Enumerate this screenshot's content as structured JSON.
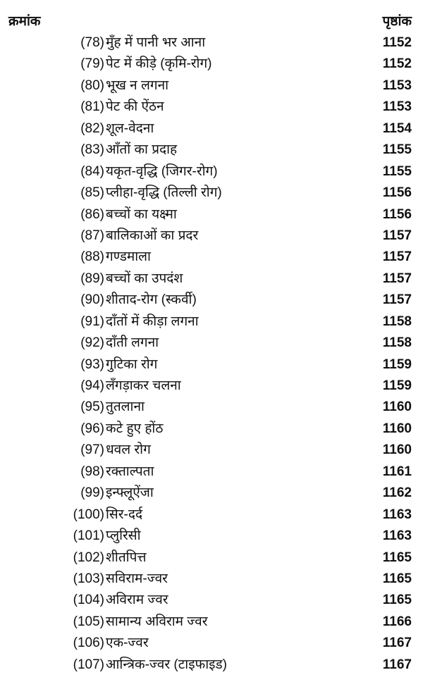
{
  "header": {
    "left": "क्रमांक",
    "right": "पृष्ठांक"
  },
  "entries": [
    {
      "num": "(78)",
      "title": "मुँह में पानी भर आना",
      "page": "1152"
    },
    {
      "num": "(79)",
      "title": "पेट में कीड़े (कृमि-रोग)",
      "page": "1152"
    },
    {
      "num": "(80)",
      "title": "भूख न लगना",
      "page": "1153"
    },
    {
      "num": "(81)",
      "title": "पेट की ऐंठन",
      "page": "1153"
    },
    {
      "num": "(82)",
      "title": "शूल-वेदना",
      "page": "1154"
    },
    {
      "num": "(83)",
      "title": "आँतों का प्रदाह",
      "page": "1155"
    },
    {
      "num": "(84)",
      "title": "यकृत-वृद्धि (जिगर-रोग)",
      "page": "1155"
    },
    {
      "num": "(85)",
      "title": "प्लीहा-वृद्धि (तिल्ली रोग)",
      "page": "1156"
    },
    {
      "num": "(86)",
      "title": "बच्चों का यक्ष्मा",
      "page": "1156"
    },
    {
      "num": "(87)",
      "title": "बालिकाओं का प्रदर",
      "page": "1157"
    },
    {
      "num": "(88)",
      "title": "गण्डमाला",
      "page": "1157"
    },
    {
      "num": "(89)",
      "title": "बच्चों का उपदंश",
      "page": "1157"
    },
    {
      "num": "(90)",
      "title": "शीताद-रोग (स्कर्वी)",
      "page": "1157"
    },
    {
      "num": "(91)",
      "title": "दाँतों में कीड़ा लगना",
      "page": "1158"
    },
    {
      "num": "(92)",
      "title": "दाँती लगना",
      "page": "1158"
    },
    {
      "num": "(93)",
      "title": "गुटिका रोग",
      "page": "1159"
    },
    {
      "num": "(94)",
      "title": "लँगड़ाकर चलना",
      "page": "1159"
    },
    {
      "num": "(95)",
      "title": "तुतलाना",
      "page": "1160"
    },
    {
      "num": "(96)",
      "title": "कटे हुए होंठ",
      "page": "1160"
    },
    {
      "num": "(97)",
      "title": "धवल रोग",
      "page": "1160"
    },
    {
      "num": "(98)",
      "title": "रक्ताल्पता",
      "page": "1161"
    },
    {
      "num": "(99)",
      "title": "इन्फ्लूऐंजा",
      "page": "1162"
    },
    {
      "num": "(100)",
      "title": "सिर-दर्द",
      "page": "1163"
    },
    {
      "num": "(101)",
      "title": "प्लुरिसी",
      "page": "1163"
    },
    {
      "num": "(102)",
      "title": "शीतपित्त",
      "page": "1165"
    },
    {
      "num": "(103)",
      "title": "सविराम-ज्वर",
      "page": "1165"
    },
    {
      "num": "(104)",
      "title": "अविराम ज्वर",
      "page": "1165"
    },
    {
      "num": "(105)",
      "title": "सामान्य अविराम ज्वर",
      "page": "1166"
    },
    {
      "num": "(106)",
      "title": "एक-ज्वर",
      "page": "1167"
    },
    {
      "num": "(107)",
      "title": "आन्त्रिक-ज्वर (टाइफाइड)",
      "page": "1167"
    }
  ]
}
